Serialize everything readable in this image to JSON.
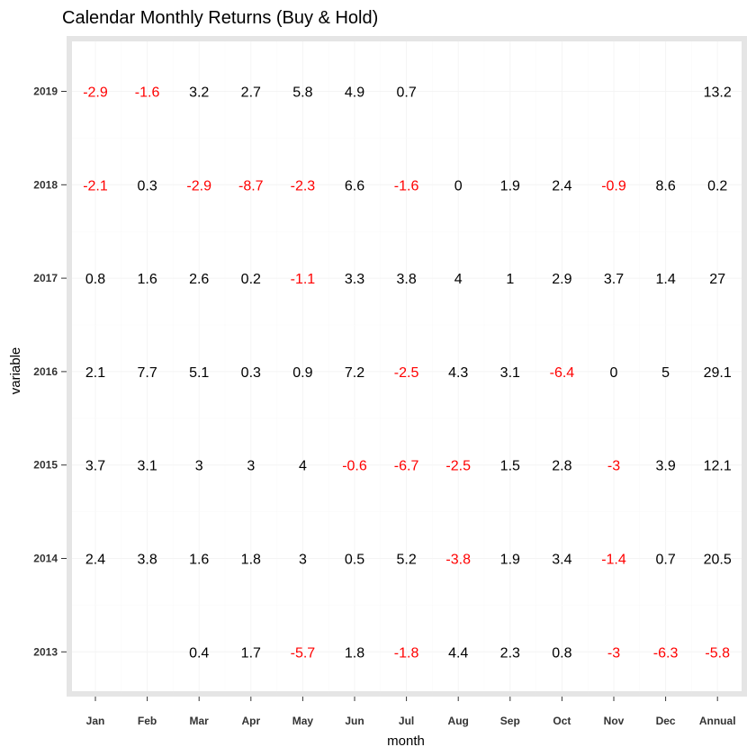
{
  "chart_data": {
    "type": "table",
    "title": "Calendar Monthly Returns (Buy & Hold)",
    "xlabel": "month",
    "ylabel": "variable",
    "columns": [
      "Jan",
      "Feb",
      "Mar",
      "Apr",
      "May",
      "Jun",
      "Jul",
      "Aug",
      "Sep",
      "Oct",
      "Nov",
      "Dec",
      "Annual"
    ],
    "rows": [
      "2019",
      "2018",
      "2017",
      "2016",
      "2015",
      "2014",
      "2013"
    ],
    "values": [
      [
        "-2.9",
        "-1.6",
        "3.2",
        "2.7",
        "5.8",
        "4.9",
        "0.7",
        null,
        null,
        null,
        null,
        null,
        "13.2"
      ],
      [
        "-2.1",
        "0.3",
        "-2.9",
        "-8.7",
        "-2.3",
        "6.6",
        "-1.6",
        "0",
        "1.9",
        "2.4",
        "-0.9",
        "8.6",
        "0.2"
      ],
      [
        "0.8",
        "1.6",
        "2.6",
        "0.2",
        "-1.1",
        "3.3",
        "3.8",
        "4",
        "1",
        "2.9",
        "3.7",
        "1.4",
        "27"
      ],
      [
        "2.1",
        "7.7",
        "5.1",
        "0.3",
        "0.9",
        "7.2",
        "-2.5",
        "4.3",
        "3.1",
        "-6.4",
        "0",
        "5",
        "29.1"
      ],
      [
        "3.7",
        "3.1",
        "3",
        "3",
        "4",
        "-0.6",
        "-6.7",
        "-2.5",
        "1.5",
        "2.8",
        "-3",
        "3.9",
        "12.1"
      ],
      [
        "2.4",
        "3.8",
        "1.6",
        "1.8",
        "3",
        "0.5",
        "5.2",
        "-3.8",
        "1.9",
        "3.4",
        "-1.4",
        "0.7",
        "20.5"
      ],
      [
        null,
        null,
        "0.4",
        "1.7",
        "-5.7",
        "1.8",
        "-1.8",
        "4.4",
        "2.3",
        "0.8",
        "-3",
        "-6.3",
        "-5.8"
      ]
    ],
    "colors": {
      "negative": "#ff0000",
      "non_negative": "#000000",
      "panel_background": "#ffffff",
      "panel_border": "#e5e5e5"
    },
    "grid": true,
    "legend": "none"
  }
}
